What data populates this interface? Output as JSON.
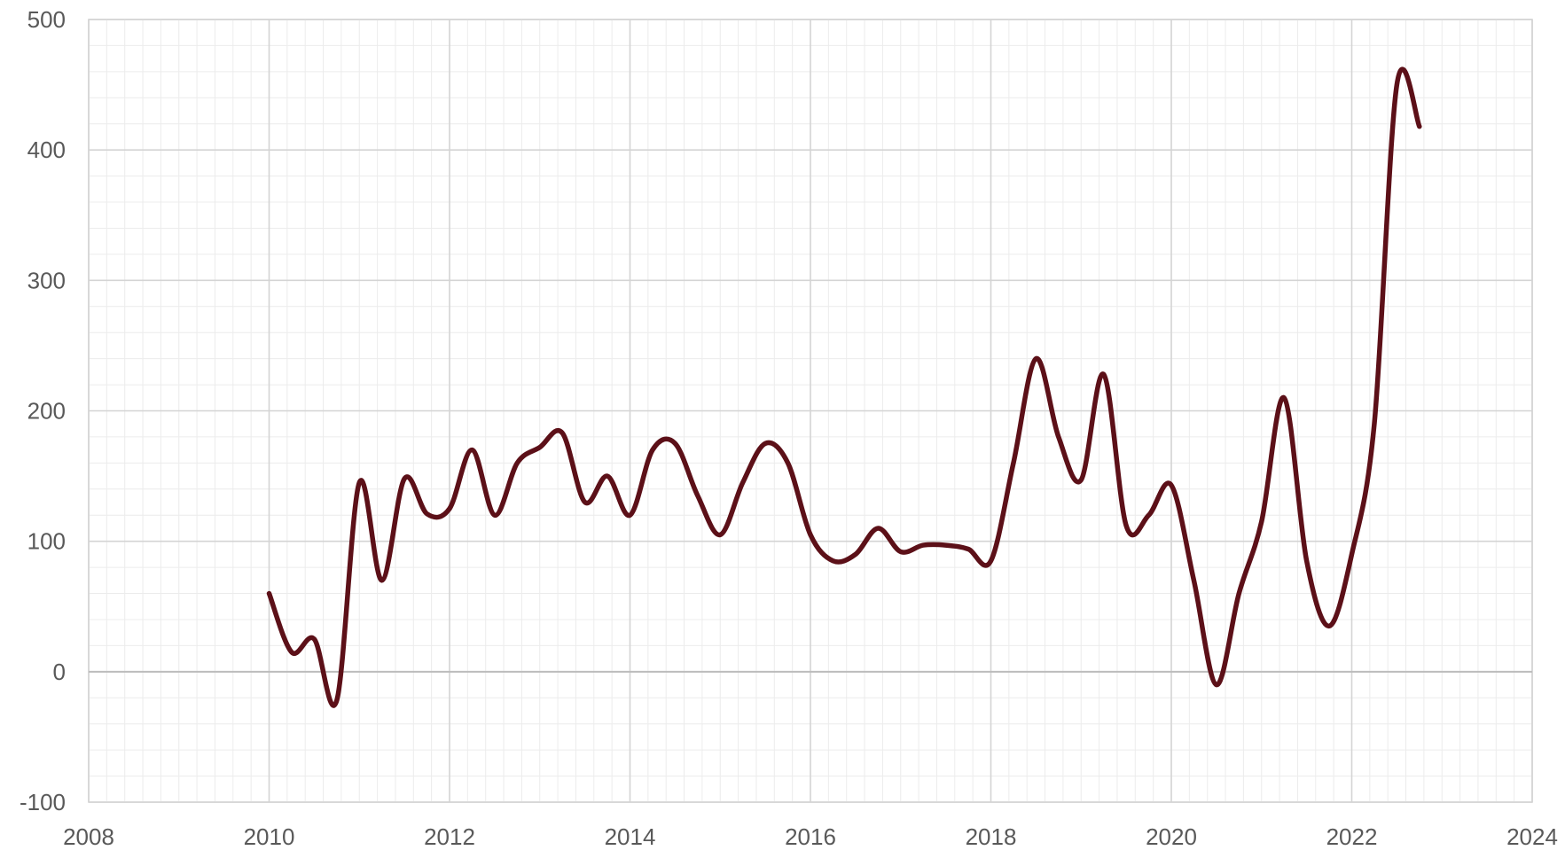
{
  "chart_data": {
    "type": "line",
    "title": "",
    "xlabel": "",
    "ylabel": "",
    "xlim": [
      2008,
      2024
    ],
    "ylim": [
      -100,
      500
    ],
    "x_ticks": [
      2008,
      2010,
      2012,
      2014,
      2016,
      2018,
      2020,
      2022,
      2024
    ],
    "y_ticks": [
      -100,
      0,
      100,
      200,
      300,
      400,
      500
    ],
    "x_tick_labels": [
      "2008",
      "2010",
      "2012",
      "2014",
      "2016",
      "2018",
      "2020",
      "2022",
      "2024"
    ],
    "y_tick_labels": [
      "-100",
      "0",
      "100",
      "200",
      "300",
      "400",
      "500"
    ],
    "grid": true,
    "legend": "none",
    "colors": {
      "series": "#5c1018",
      "grid": "#d4d4d4",
      "text": "#595959"
    },
    "series": [
      {
        "x": [
          2010.0,
          2010.25,
          2010.5,
          2010.75,
          2011.0,
          2011.25,
          2011.5,
          2011.75,
          2012.0,
          2012.25,
          2012.5,
          2012.75,
          2013.0,
          2013.25,
          2013.5,
          2013.75,
          2014.0,
          2014.25,
          2014.5,
          2014.75,
          2015.0,
          2015.25,
          2015.5,
          2015.75,
          2016.0,
          2016.25,
          2016.5,
          2016.75,
          2017.0,
          2017.25,
          2017.5,
          2017.75,
          2018.0,
          2018.25,
          2018.5,
          2018.75,
          2019.0,
          2019.25,
          2019.5,
          2019.75,
          2020.0,
          2020.25,
          2020.5,
          2020.75,
          2021.0,
          2021.25,
          2021.5,
          2021.75,
          2022.0,
          2022.25,
          2022.5,
          2022.75
        ],
        "values": [
          60,
          15,
          25,
          -22,
          145,
          70,
          148,
          121,
          125,
          170,
          120,
          160,
          172,
          183,
          130,
          150,
          120,
          170,
          175,
          135,
          105,
          145,
          175,
          160,
          105,
          85,
          90,
          110,
          92,
          97,
          97,
          94,
          85,
          160,
          240,
          180,
          147,
          228,
          112,
          120,
          143,
          70,
          -10,
          60,
          115,
          210,
          85,
          35,
          90,
          190,
          450,
          418
        ]
      }
    ]
  }
}
